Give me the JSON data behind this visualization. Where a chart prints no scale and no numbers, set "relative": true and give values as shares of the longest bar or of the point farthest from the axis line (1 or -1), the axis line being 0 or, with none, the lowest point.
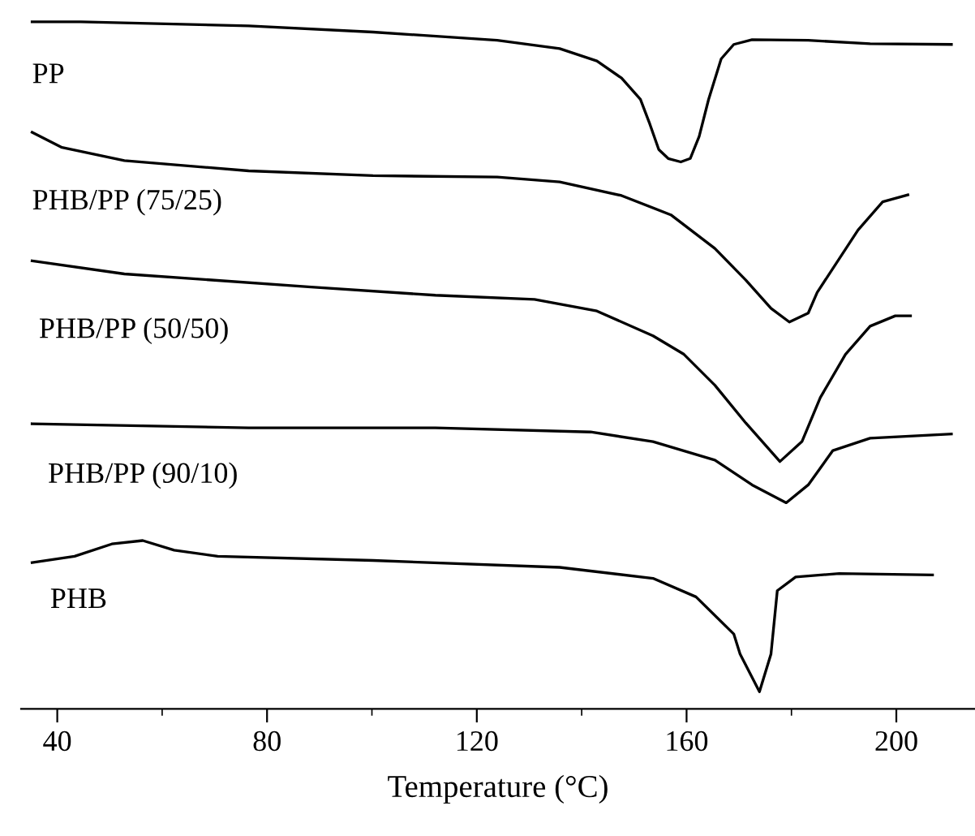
{
  "chart_data": {
    "type": "line",
    "relative": true,
    "xlabel": "Temperature (°C)",
    "xlim": [
      33.1,
      215.0
    ],
    "xticks": [
      40,
      {
        "value": 60,
        "label": null
      },
      80,
      {
        "value": 100,
        "label": null
      },
      120,
      {
        "value": 140,
        "label": null
      },
      160,
      {
        "value": 180,
        "label": null
      },
      200
    ],
    "tick_labels": "x",
    "grid": false,
    "legend": false,
    "marker": "none",
    "line_style": "solid",
    "series": [
      {
        "name": "PP",
        "color": "#000000",
        "x": [
          35.2,
          44.5,
          76.5,
          100.2,
          123.9,
          135.8,
          142.9,
          147.6,
          151.2,
          153.0,
          154.7,
          156.5,
          158.9,
          160.7,
          162.4,
          164.2,
          166.6,
          169.0,
          172.5,
          183.2,
          195.0,
          210.5
        ],
        "values": [
          1.0,
          1.0,
          0.994,
          0.985,
          0.973,
          0.961,
          0.943,
          0.918,
          0.887,
          0.851,
          0.814,
          0.801,
          0.796,
          0.801,
          0.833,
          0.887,
          0.946,
          0.967,
          0.974,
          0.973,
          0.968,
          0.967
        ]
      },
      {
        "name": "PHB/PP (75/25)",
        "color": "#000000",
        "x": [
          35.2,
          40.9,
          52.8,
          76.5,
          100.2,
          123.9,
          135.8,
          147.6,
          157.0,
          165.4,
          171.3,
          176.1,
          179.6,
          183.2,
          184.9,
          192.7,
          197.4,
          202.2
        ],
        "values": [
          0.839,
          0.817,
          0.798,
          0.783,
          0.776,
          0.774,
          0.767,
          0.747,
          0.719,
          0.67,
          0.624,
          0.583,
          0.563,
          0.576,
          0.606,
          0.697,
          0.738,
          0.748
        ]
      },
      {
        "name": "PHB/PP (50/50)",
        "color": "#000000",
        "x": [
          35.2,
          52.8,
          88.4,
          112.1,
          131.0,
          142.9,
          153.6,
          159.5,
          165.4,
          171.3,
          177.8,
          182.0,
          185.5,
          190.3,
          195.0,
          199.8,
          202.7
        ],
        "values": [
          0.652,
          0.633,
          0.614,
          0.602,
          0.596,
          0.579,
          0.543,
          0.516,
          0.471,
          0.416,
          0.36,
          0.389,
          0.453,
          0.516,
          0.557,
          0.572,
          0.572
        ]
      },
      {
        "name": "PHB/PP (90/10)",
        "color": "#000000",
        "x": [
          35.2,
          76.5,
          112.1,
          141.7,
          153.6,
          165.4,
          172.5,
          179.0,
          183.2,
          187.9,
          195.0,
          210.5
        ],
        "values": [
          0.415,
          0.409,
          0.409,
          0.403,
          0.389,
          0.362,
          0.326,
          0.3,
          0.326,
          0.376,
          0.394,
          0.4
        ]
      },
      {
        "name": "PHB",
        "color": "#000000",
        "x": [
          35.2,
          43.3,
          50.4,
          56.3,
          62.3,
          70.6,
          100.2,
          135.8,
          153.6,
          161.8,
          169.0,
          170.2,
          173.9,
          176.1,
          177.3,
          180.8,
          189.1,
          206.9
        ],
        "values": [
          0.213,
          0.222,
          0.24,
          0.245,
          0.231,
          0.222,
          0.216,
          0.206,
          0.19,
          0.163,
          0.109,
          0.08,
          0.025,
          0.08,
          0.172,
          0.192,
          0.197,
          0.195
        ]
      }
    ]
  }
}
